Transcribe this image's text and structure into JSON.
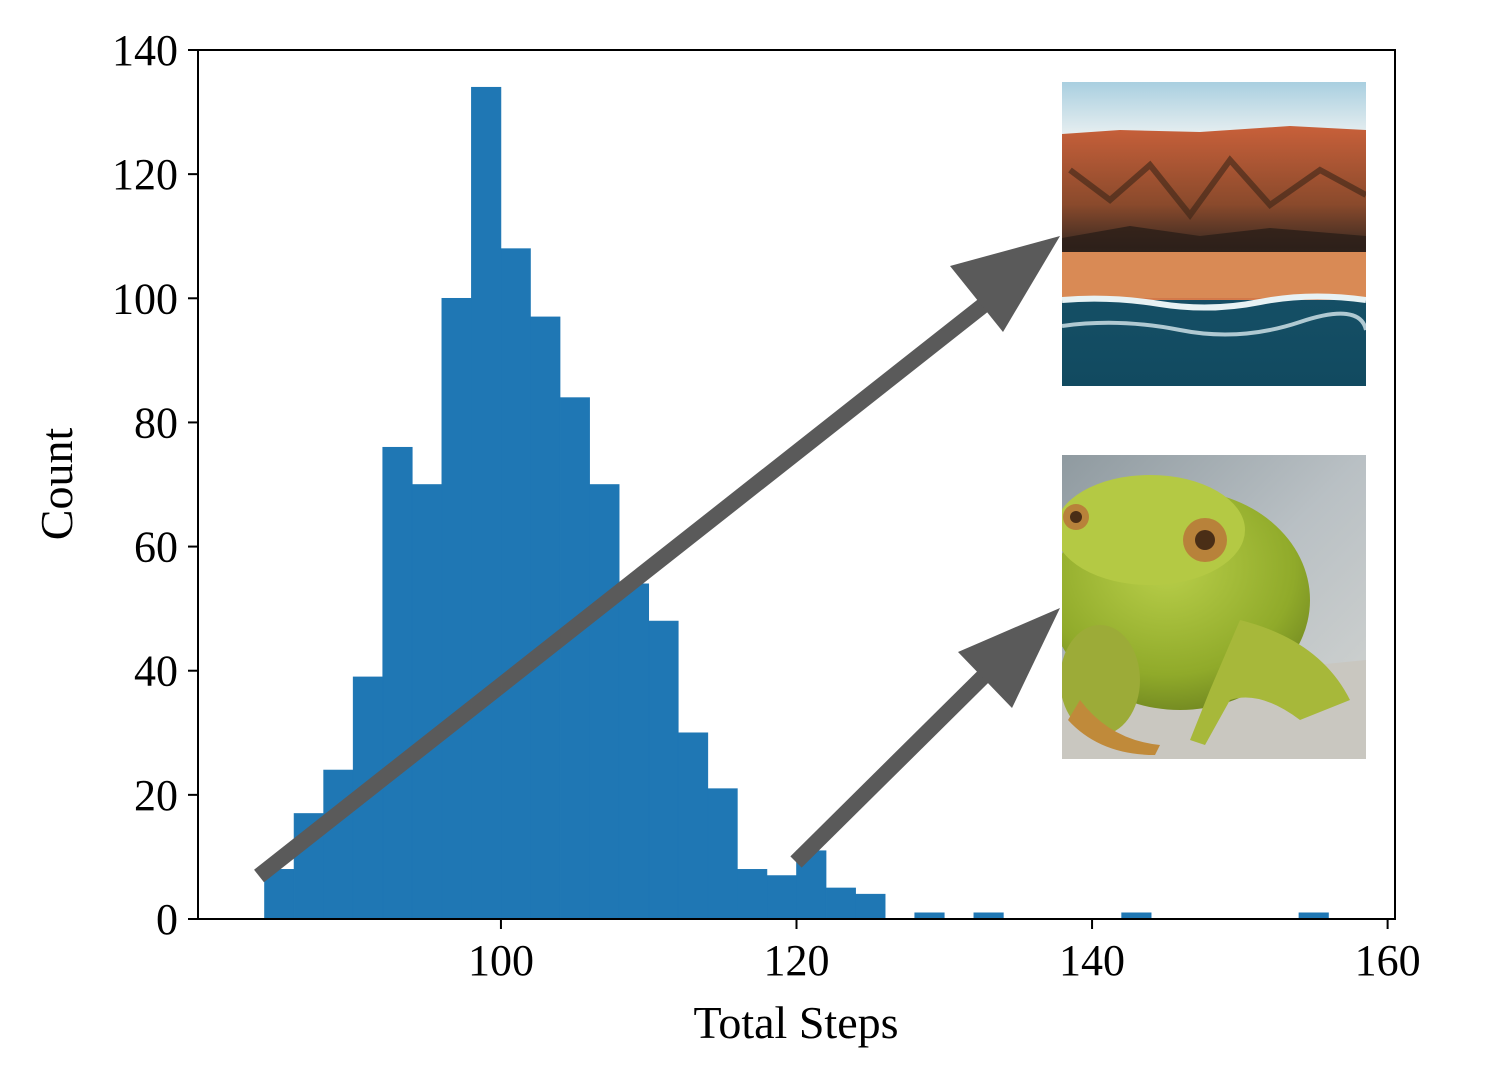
{
  "chart_data": {
    "type": "bar",
    "title": "",
    "xlabel": "Total Steps",
    "ylabel": "Count",
    "xlim": [
      79.5,
      160.5
    ],
    "ylim": [
      0,
      140
    ],
    "x_ticks": [
      100,
      120,
      140,
      160
    ],
    "y_ticks": [
      0,
      20,
      40,
      60,
      80,
      100,
      120,
      140
    ],
    "bin_width": 2,
    "bins": [
      {
        "start": 84,
        "count": 8
      },
      {
        "start": 86,
        "count": 17
      },
      {
        "start": 88,
        "count": 24
      },
      {
        "start": 90,
        "count": 39
      },
      {
        "start": 92,
        "count": 76
      },
      {
        "start": 94,
        "count": 70
      },
      {
        "start": 96,
        "count": 100
      },
      {
        "start": 98,
        "count": 134
      },
      {
        "start": 100,
        "count": 108
      },
      {
        "start": 102,
        "count": 97
      },
      {
        "start": 104,
        "count": 84
      },
      {
        "start": 106,
        "count": 70
      },
      {
        "start": 108,
        "count": 54
      },
      {
        "start": 110,
        "count": 48
      },
      {
        "start": 112,
        "count": 30
      },
      {
        "start": 114,
        "count": 21
      },
      {
        "start": 116,
        "count": 8
      },
      {
        "start": 118,
        "count": 7
      },
      {
        "start": 120,
        "count": 11
      },
      {
        "start": 122,
        "count": 5
      },
      {
        "start": 124,
        "count": 4
      },
      {
        "start": 126,
        "count": 0
      },
      {
        "start": 128,
        "count": 1
      },
      {
        "start": 130,
        "count": 0
      },
      {
        "start": 132,
        "count": 1
      },
      {
        "start": 134,
        "count": 0
      },
      {
        "start": 136,
        "count": 0
      },
      {
        "start": 138,
        "count": 0
      },
      {
        "start": 140,
        "count": 0
      },
      {
        "start": 142,
        "count": 1
      },
      {
        "start": 144,
        "count": 0
      },
      {
        "start": 146,
        "count": 0
      },
      {
        "start": 148,
        "count": 0
      },
      {
        "start": 150,
        "count": 0
      },
      {
        "start": 152,
        "count": 0
      },
      {
        "start": 154,
        "count": 1
      }
    ],
    "annotations": [
      {
        "kind": "arrow",
        "from": {
          "x": 84.5,
          "y": 7
        },
        "to_image": "cliff-sea-thumbnail"
      },
      {
        "kind": "arrow",
        "from": {
          "x": 120.5,
          "y": 9
        },
        "to_image": "frog-thumbnail"
      }
    ],
    "images": [
      {
        "name": "cliff-sea-thumbnail",
        "subject": "red-rock coastal cliffs above the sea"
      },
      {
        "name": "frog-thumbnail",
        "subject": "green tree frog"
      }
    ],
    "colors": {
      "bar": "#1f77b4",
      "arrow": "#5a5a5a"
    }
  }
}
